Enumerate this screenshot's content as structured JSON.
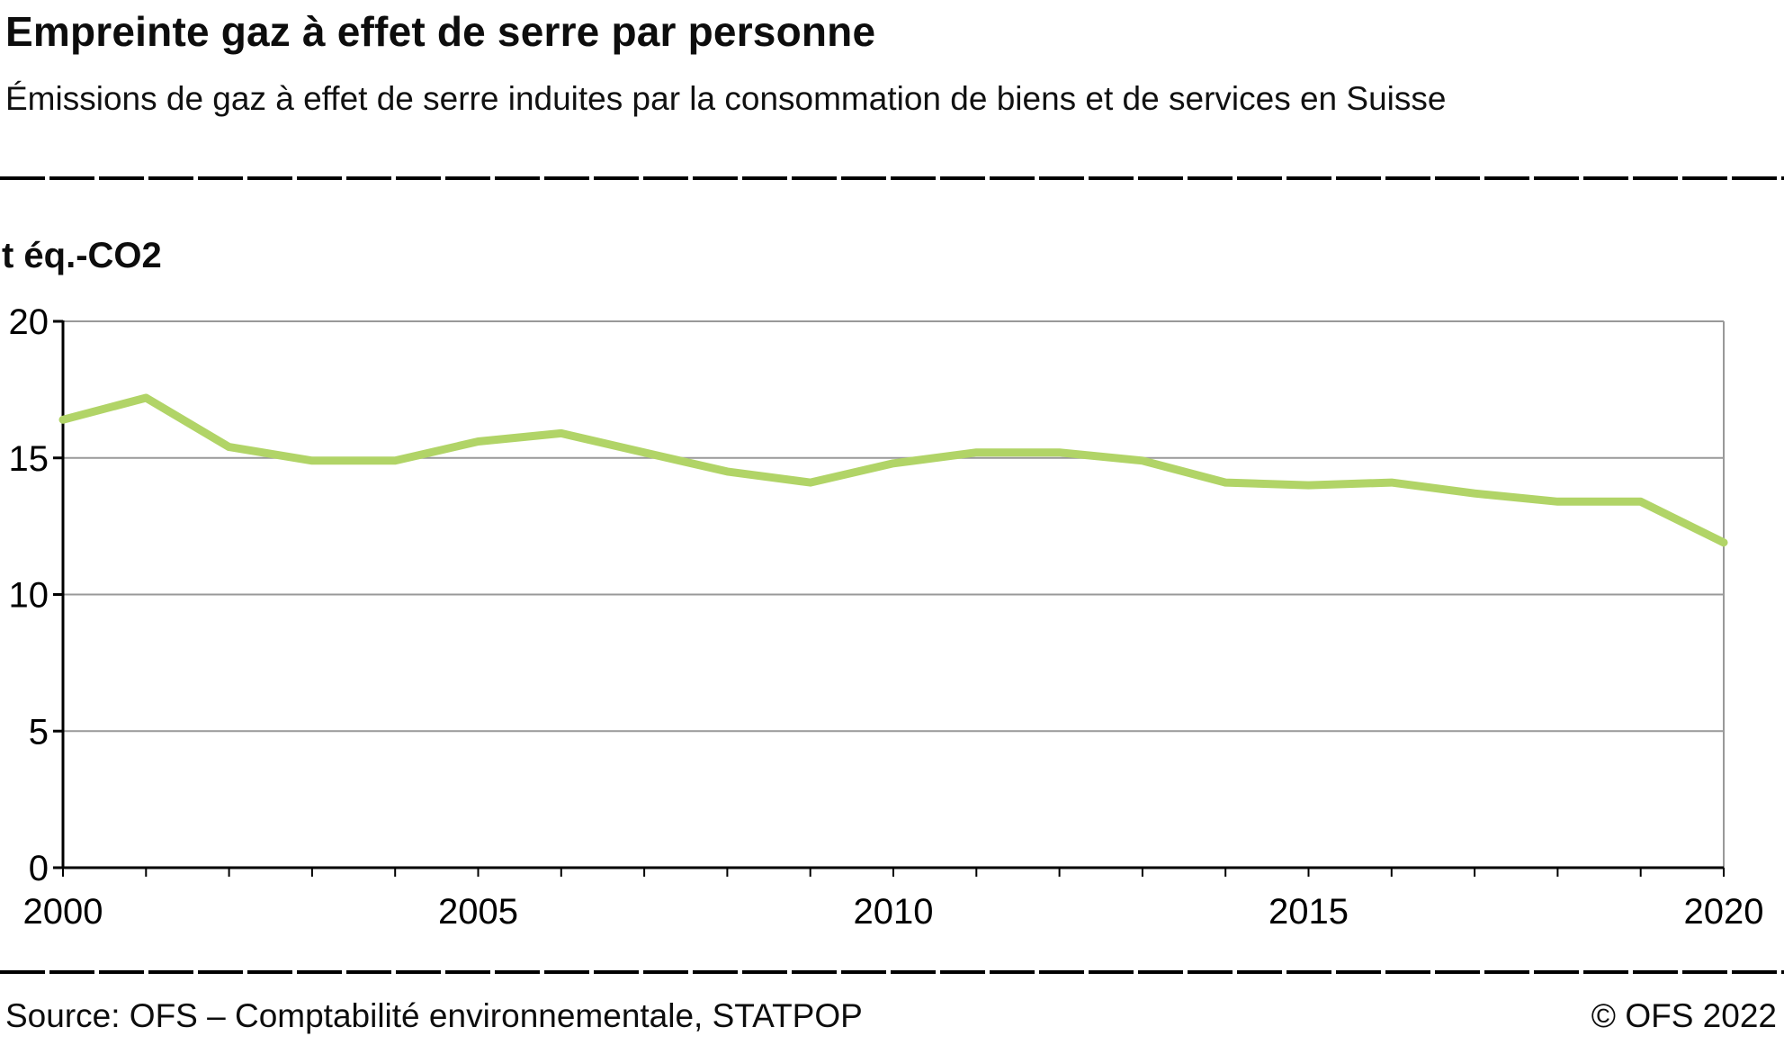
{
  "header": {
    "title": "Empreinte gaz à effet de serre par personne",
    "subtitle": "Émissions de gaz à effet de serre induites par la consommation de biens et de services en Suisse"
  },
  "chart_data": {
    "type": "line",
    "title": "Empreinte gaz à effet de serre par personne",
    "subtitle": "Émissions de gaz à effet de serre induites par la consommation de biens et de services en Suisse",
    "ylabel": "t éq.-CO2",
    "xlabel": "",
    "x": [
      2000,
      2001,
      2002,
      2003,
      2004,
      2005,
      2006,
      2007,
      2008,
      2009,
      2010,
      2011,
      2012,
      2013,
      2014,
      2015,
      2016,
      2017,
      2018,
      2019,
      2020
    ],
    "values": [
      16.4,
      17.2,
      15.4,
      14.9,
      14.9,
      15.6,
      15.9,
      15.2,
      14.5,
      14.1,
      14.8,
      15.2,
      15.2,
      14.9,
      14.1,
      14.0,
      14.1,
      13.7,
      13.4,
      13.4,
      11.9
    ],
    "ylim": [
      0,
      20
    ],
    "yticks": [
      0,
      5,
      10,
      15,
      20
    ],
    "xticks": [
      2000,
      2005,
      2010,
      2015,
      2020
    ],
    "line_color": "#b1d467",
    "grid_color": "#999999",
    "axis_color": "#000000",
    "grid": true,
    "legend_position": "none"
  },
  "footer": {
    "source": "Source: OFS – Comptabilité environnementale, STATPOP",
    "copyright": "© OFS 2022"
  }
}
